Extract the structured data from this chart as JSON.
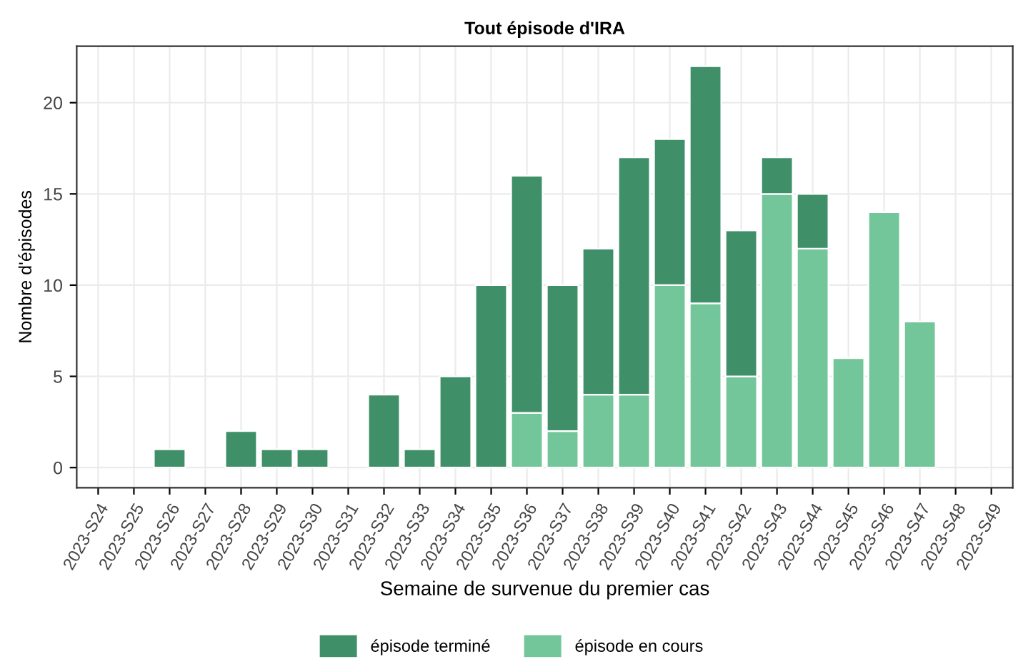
{
  "chart_data": {
    "type": "bar",
    "title": "Tout épisode d'IRA",
    "xlabel": "Semaine de survenue du premier cas",
    "ylabel": "Nombre d'épisodes",
    "categories": [
      "2023-S24",
      "2023-S25",
      "2023-S26",
      "2023-S27",
      "2023-S28",
      "2023-S29",
      "2023-S30",
      "2023-S31",
      "2023-S32",
      "2023-S33",
      "2023-S34",
      "2023-S35",
      "2023-S36",
      "2023-S37",
      "2023-S38",
      "2023-S39",
      "2023-S40",
      "2023-S41",
      "2023-S42",
      "2023-S43",
      "2023-S44",
      "2023-S45",
      "2023-S46",
      "2023-S47",
      "2023-S48",
      "2023-S49"
    ],
    "stacked": true,
    "series": [
      {
        "name": "épisode en cours",
        "color": "#72c69a",
        "values": [
          0,
          0,
          0,
          0,
          0,
          0,
          0,
          0,
          0,
          0,
          0,
          0,
          3,
          2,
          4,
          4,
          10,
          9,
          5,
          15,
          12,
          6,
          14,
          8,
          0,
          0
        ]
      },
      {
        "name": "épisode terminé",
        "color": "#3f8f69",
        "values": [
          0,
          0,
          1,
          0,
          2,
          1,
          1,
          0,
          4,
          1,
          5,
          10,
          13,
          8,
          8,
          13,
          8,
          13,
          8,
          2,
          3,
          0,
          0,
          0,
          0,
          0
        ]
      }
    ],
    "ylim": [
      -1.1,
      23.1
    ],
    "yticks": [
      0,
      5,
      10,
      15,
      20
    ],
    "grid": true,
    "legend": "bottom"
  }
}
